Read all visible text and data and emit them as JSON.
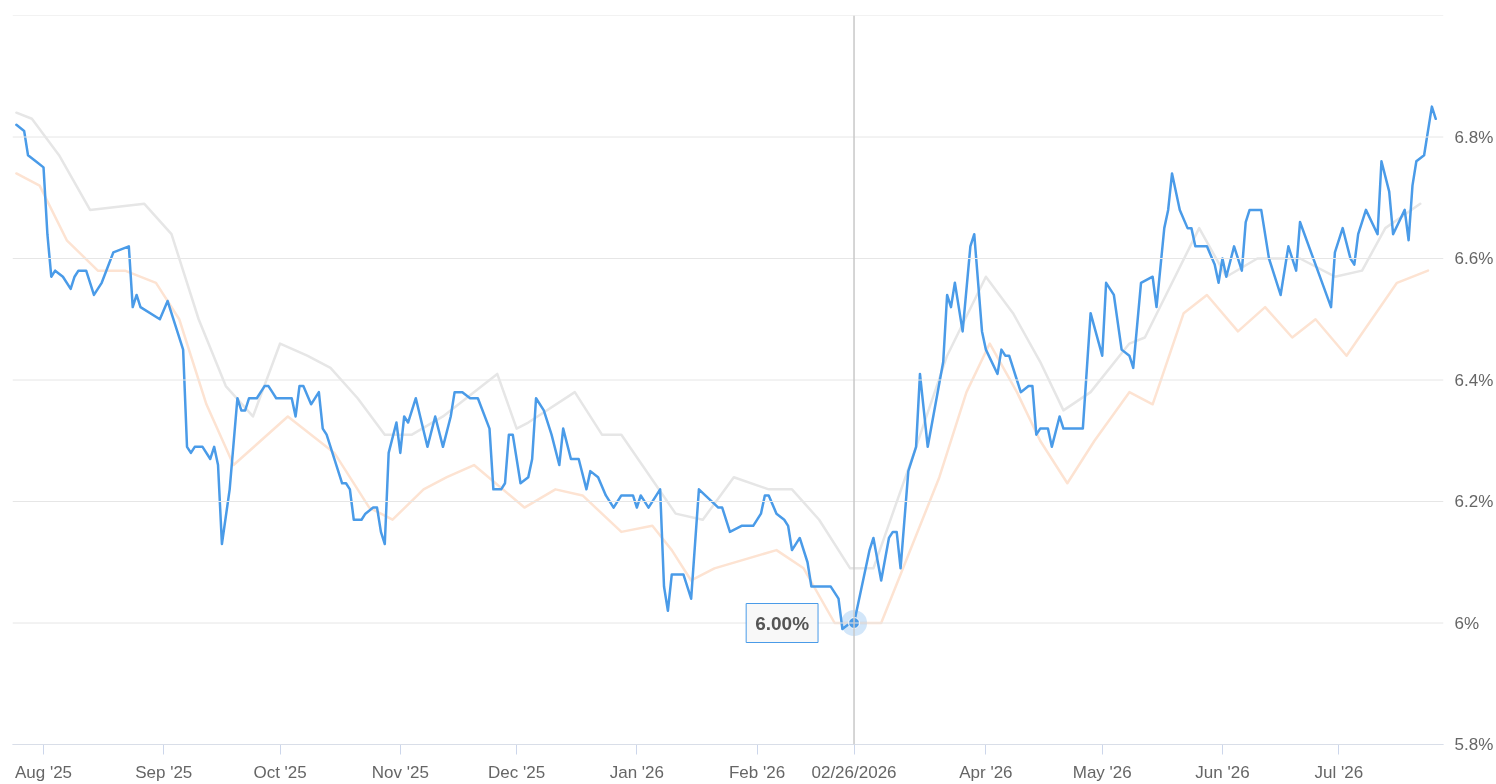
{
  "chart_data": {
    "type": "line",
    "xlim": [
      "2025-07-24",
      "2026-07-28"
    ],
    "xticks": [
      {
        "value": "2025-08-01",
        "label": "Aug '25"
      },
      {
        "value": "2025-09-01",
        "label": "Sep '25"
      },
      {
        "value": "2025-10-01",
        "label": "Oct '25"
      },
      {
        "value": "2025-11-01",
        "label": "Nov '25"
      },
      {
        "value": "2025-12-01",
        "label": "Dec '25"
      },
      {
        "value": "2026-01-01",
        "label": "Jan '26"
      },
      {
        "value": "2026-02-01",
        "label": "Feb '26"
      },
      {
        "value": "2026-04-01",
        "label": "Apr '26"
      },
      {
        "value": "2026-05-01",
        "label": "May '26"
      },
      {
        "value": "2026-06-01",
        "label": "Jun '26"
      },
      {
        "value": "2026-07-01",
        "label": "Jul '26"
      }
    ],
    "ylim": [
      5.8,
      7.0
    ],
    "yticks": [
      {
        "value": 5.8,
        "label": "5.8%"
      },
      {
        "value": 6.0,
        "label": "6%"
      },
      {
        "value": 6.2,
        "label": "6.2%"
      },
      {
        "value": 6.4,
        "label": "6.4%"
      },
      {
        "value": 6.6,
        "label": "6.6%"
      },
      {
        "value": 6.8,
        "label": "6.8%"
      },
      {
        "value": 7.0,
        "label": null
      }
    ],
    "grid": "y",
    "ref_lines": [
      {
        "axis": "x",
        "value": "2026-02-26",
        "label": "02/26/2026",
        "color": "#c8c8c8"
      }
    ],
    "annotations": [
      {
        "text": "6.00%",
        "x": "2026-02-26",
        "y": 6.0
      }
    ],
    "series": [
      {
        "color": "#e6e6e6",
        "x": [
          "2025-07-25",
          "2025-07-29",
          "2025-08-05",
          "2025-08-13",
          "2025-08-27",
          "2025-09-03",
          "2025-09-10",
          "2025-09-17",
          "2025-09-24",
          "2025-10-01",
          "2025-10-08",
          "2025-10-14",
          "2025-10-21",
          "2025-10-28",
          "2025-11-04",
          "2025-11-12",
          "2025-11-26",
          "2025-12-01",
          "2025-12-04",
          "2025-12-16",
          "2025-12-23",
          "2025-12-28",
          "2026-01-11",
          "2026-01-18",
          "2026-01-26",
          "2026-02-04",
          "2026-02-10",
          "2026-02-17",
          "2026-02-25",
          "2026-03-03",
          "2026-03-14",
          "2026-03-22",
          "2026-04-01",
          "2026-04-08",
          "2026-04-15",
          "2026-04-21",
          "2026-04-28",
          "2026-05-08",
          "2026-05-12",
          "2026-05-26",
          "2026-06-02",
          "2026-06-10",
          "2026-06-21",
          "2026-06-30",
          "2026-07-07",
          "2026-07-13",
          "2026-07-22"
        ],
        "values": [
          6.84,
          6.83,
          6.77,
          6.68,
          6.69,
          6.64,
          6.5,
          6.39,
          6.34,
          6.46,
          6.44,
          6.42,
          6.37,
          6.31,
          6.31,
          6.34,
          6.41,
          6.32,
          6.33,
          6.38,
          6.31,
          6.31,
          6.18,
          6.17,
          6.24,
          6.22,
          6.22,
          6.17,
          6.09,
          6.09,
          6.29,
          6.44,
          6.57,
          6.51,
          6.43,
          6.35,
          6.38,
          6.46,
          6.47,
          6.65,
          6.57,
          6.6,
          6.6,
          6.57,
          6.58,
          6.65,
          6.69
        ]
      },
      {
        "color": "#fde3d2",
        "x": [
          "2025-07-25",
          "2025-07-31",
          "2025-08-07",
          "2025-08-15",
          "2025-08-22",
          "2025-08-30",
          "2025-09-05",
          "2025-09-12",
          "2025-09-19",
          "2025-10-03",
          "2025-10-15",
          "2025-10-24",
          "2025-10-30",
          "2025-11-07",
          "2025-11-13",
          "2025-11-20",
          "2025-12-03",
          "2025-12-11",
          "2025-12-18",
          "2025-12-28",
          "2026-01-05",
          "2026-01-10",
          "2026-01-15",
          "2026-01-21",
          "2026-02-06",
          "2026-02-13",
          "2026-02-21",
          "2026-03-05",
          "2026-03-20",
          "2026-03-27",
          "2026-04-02",
          "2026-04-09",
          "2026-04-15",
          "2026-04-22",
          "2026-04-29",
          "2026-05-08",
          "2026-05-14",
          "2026-05-22",
          "2026-05-28",
          "2026-06-05",
          "2026-06-12",
          "2026-06-19",
          "2026-06-25",
          "2026-07-03",
          "2026-07-16",
          "2026-07-24"
        ],
        "values": [
          6.74,
          6.72,
          6.63,
          6.58,
          6.58,
          6.56,
          6.5,
          6.36,
          6.26,
          6.34,
          6.28,
          6.19,
          6.17,
          6.22,
          6.24,
          6.26,
          6.19,
          6.22,
          6.21,
          6.15,
          6.16,
          6.12,
          6.07,
          6.09,
          6.12,
          6.09,
          6.0,
          6.0,
          6.24,
          6.38,
          6.46,
          6.38,
          6.3,
          6.23,
          6.3,
          6.38,
          6.36,
          6.51,
          6.54,
          6.48,
          6.52,
          6.47,
          6.5,
          6.44,
          6.56,
          6.58
        ]
      },
      {
        "color": "#4a9be8",
        "x": [
          "2025-07-25",
          "2025-07-27",
          "2025-07-28",
          "2025-07-30",
          "2025-08-01",
          "2025-08-02",
          "2025-08-03",
          "2025-08-04",
          "2025-08-06",
          "2025-08-08",
          "2025-08-09",
          "2025-08-10",
          "2025-08-12",
          "2025-08-14",
          "2025-08-16",
          "2025-08-19",
          "2025-08-23",
          "2025-08-24",
          "2025-08-25",
          "2025-08-26",
          "2025-08-31",
          "2025-09-02",
          "2025-09-06",
          "2025-09-07",
          "2025-09-08",
          "2025-09-09",
          "2025-09-11",
          "2025-09-13",
          "2025-09-14",
          "2025-09-15",
          "2025-09-16",
          "2025-09-18",
          "2025-09-20",
          "2025-09-21",
          "2025-09-22",
          "2025-09-23",
          "2025-09-25",
          "2025-09-27",
          "2025-09-28",
          "2025-09-29",
          "2025-09-30",
          "2025-10-02",
          "2025-10-04",
          "2025-10-05",
          "2025-10-06",
          "2025-10-07",
          "2025-10-09",
          "2025-10-11",
          "2025-10-12",
          "2025-10-13",
          "2025-10-17",
          "2025-10-18",
          "2025-10-19",
          "2025-10-20",
          "2025-10-22",
          "2025-10-23",
          "2025-10-25",
          "2025-10-26",
          "2025-10-27",
          "2025-10-28",
          "2025-10-29",
          "2025-10-31",
          "2025-11-01",
          "2025-11-02",
          "2025-11-03",
          "2025-11-05",
          "2025-11-08",
          "2025-11-10",
          "2025-11-12",
          "2025-11-14",
          "2025-11-15",
          "2025-11-17",
          "2025-11-19",
          "2025-11-21",
          "2025-11-24",
          "2025-11-25",
          "2025-11-27",
          "2025-11-28",
          "2025-11-29",
          "2025-11-30",
          "2025-12-02",
          "2025-12-04",
          "2025-12-05",
          "2025-12-06",
          "2025-12-08",
          "2025-12-10",
          "2025-12-12",
          "2025-12-13",
          "2025-12-15",
          "2025-12-17",
          "2025-12-19",
          "2025-12-20",
          "2025-12-22",
          "2025-12-24",
          "2025-12-26",
          "2025-12-28",
          "2025-12-31",
          "2026-01-01",
          "2026-01-02",
          "2026-01-04",
          "2026-01-07",
          "2026-01-08",
          "2026-01-09",
          "2026-01-10",
          "2026-01-13",
          "2026-01-15",
          "2026-01-17",
          "2026-01-22",
          "2026-01-23",
          "2026-01-25",
          "2026-01-28",
          "2026-01-31",
          "2026-02-02",
          "2026-02-03",
          "2026-02-04",
          "2026-02-06",
          "2026-02-08",
          "2026-02-09",
          "2026-02-10",
          "2026-02-12",
          "2026-02-14",
          "2026-02-15",
          "2026-02-20",
          "2026-02-22",
          "2026-02-23",
          "2026-02-25",
          "2026-02-26",
          "2026-03-02",
          "2026-03-03",
          "2026-03-05",
          "2026-03-07",
          "2026-03-08",
          "2026-03-09",
          "2026-03-10",
          "2026-03-12",
          "2026-03-14",
          "2026-03-15",
          "2026-03-17",
          "2026-03-21",
          "2026-03-22",
          "2026-03-23",
          "2026-03-24",
          "2026-03-26",
          "2026-03-28",
          "2026-03-29",
          "2026-03-31",
          "2026-04-01",
          "2026-04-04",
          "2026-04-05",
          "2026-04-06",
          "2026-04-07",
          "2026-04-09",
          "2026-04-10",
          "2026-04-12",
          "2026-04-13",
          "2026-04-14",
          "2026-04-15",
          "2026-04-17",
          "2026-04-18",
          "2026-04-20",
          "2026-04-21",
          "2026-04-26",
          "2026-04-28",
          "2026-05-01",
          "2026-05-02",
          "2026-05-04",
          "2026-05-06",
          "2026-05-08",
          "2026-05-09",
          "2026-05-11",
          "2026-05-14",
          "2026-05-15",
          "2026-05-17",
          "2026-05-18",
          "2026-05-19",
          "2026-05-21",
          "2026-05-23",
          "2026-05-24",
          "2026-05-25",
          "2026-05-28",
          "2026-05-30",
          "2026-05-31",
          "2026-06-01",
          "2026-06-02",
          "2026-06-04",
          "2026-06-06",
          "2026-06-07",
          "2026-06-08",
          "2026-06-09",
          "2026-06-11",
          "2026-06-13",
          "2026-06-16",
          "2026-06-18",
          "2026-06-20",
          "2026-06-21",
          "2026-06-29",
          "2026-06-30",
          "2026-07-02",
          "2026-07-04",
          "2026-07-05",
          "2026-07-06",
          "2026-07-08",
          "2026-07-11",
          "2026-07-12",
          "2026-07-14",
          "2026-07-15",
          "2026-07-18",
          "2026-07-19",
          "2026-07-20",
          "2026-07-21",
          "2026-07-23",
          "2026-07-25",
          "2026-07-26"
        ],
        "values": [
          6.82,
          6.81,
          6.77,
          6.76,
          6.75,
          6.64,
          6.57,
          6.58,
          6.57,
          6.55,
          6.57,
          6.58,
          6.58,
          6.54,
          6.56,
          6.61,
          6.62,
          6.52,
          6.54,
          6.52,
          6.5,
          6.53,
          6.45,
          6.29,
          6.28,
          6.29,
          6.29,
          6.27,
          6.29,
          6.26,
          6.13,
          6.22,
          6.37,
          6.35,
          6.35,
          6.37,
          6.37,
          6.39,
          6.39,
          6.38,
          6.37,
          6.37,
          6.37,
          6.34,
          6.39,
          6.39,
          6.36,
          6.38,
          6.32,
          6.31,
          6.23,
          6.23,
          6.22,
          6.17,
          6.17,
          6.18,
          6.19,
          6.19,
          6.15,
          6.13,
          6.28,
          6.33,
          6.28,
          6.34,
          6.33,
          6.37,
          6.29,
          6.34,
          6.29,
          6.34,
          6.38,
          6.38,
          6.37,
          6.37,
          6.32,
          6.22,
          6.22,
          6.23,
          6.31,
          6.31,
          6.23,
          6.24,
          6.27,
          6.37,
          6.35,
          6.31,
          6.26,
          6.32,
          6.27,
          6.27,
          6.22,
          6.25,
          6.24,
          6.21,
          6.19,
          6.21,
          6.21,
          6.19,
          6.21,
          6.19,
          6.22,
          6.06,
          6.02,
          6.08,
          6.08,
          6.04,
          6.22,
          6.19,
          6.19,
          6.15,
          6.16,
          6.16,
          6.18,
          6.21,
          6.21,
          6.18,
          6.17,
          6.16,
          6.12,
          6.14,
          6.1,
          6.06,
          6.06,
          6.04,
          5.99,
          6.0,
          6.0,
          6.12,
          6.14,
          6.07,
          6.14,
          6.15,
          6.15,
          6.09,
          6.25,
          6.29,
          6.41,
          6.29,
          6.43,
          6.54,
          6.52,
          6.56,
          6.48,
          6.62,
          6.64,
          6.48,
          6.45,
          6.41,
          6.45,
          6.44,
          6.44,
          6.4,
          6.38,
          6.39,
          6.39,
          6.31,
          6.32,
          6.32,
          6.29,
          6.34,
          6.32,
          6.32,
          6.51,
          6.44,
          6.56,
          6.54,
          6.45,
          6.44,
          6.42,
          6.56,
          6.57,
          6.52,
          6.65,
          6.68,
          6.74,
          6.68,
          6.65,
          6.65,
          6.62,
          6.62,
          6.59,
          6.56,
          6.6,
          6.57,
          6.62,
          6.58,
          6.66,
          6.68,
          6.68,
          6.68,
          6.6,
          6.54,
          6.62,
          6.58,
          6.66,
          6.52,
          6.61,
          6.65,
          6.6,
          6.59,
          6.64,
          6.68,
          6.64,
          6.76,
          6.71,
          6.64,
          6.68,
          6.63,
          6.72,
          6.76,
          6.77,
          6.85,
          6.83
        ]
      }
    ]
  }
}
